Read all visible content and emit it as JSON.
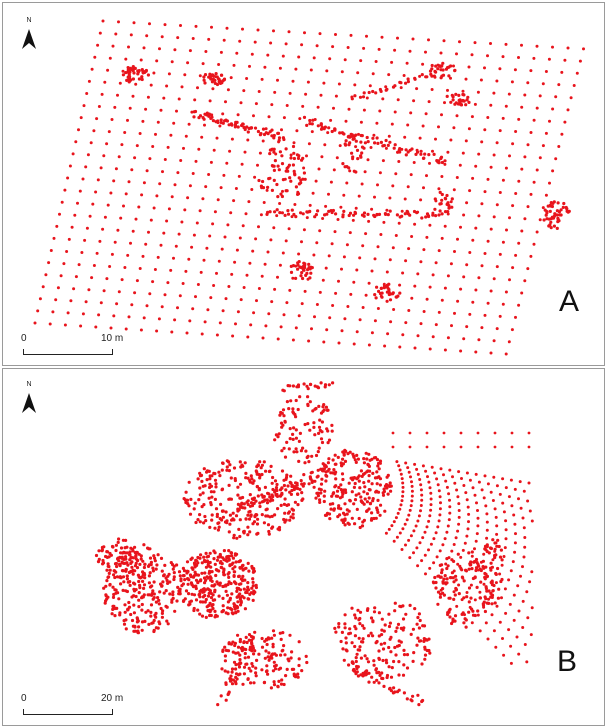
{
  "panels": [
    {
      "id": "A",
      "letter": "A",
      "north_label": "N",
      "scale": {
        "start": "0",
        "end": "10 m"
      },
      "point_color": "#e8141c"
    },
    {
      "id": "B",
      "letter": "B",
      "north_label": "N",
      "scale": {
        "start": "0",
        "end": "20 m"
      },
      "point_color": "#e8141c"
    }
  ],
  "icons": {
    "north_arrow": "north-arrow-icon"
  }
}
